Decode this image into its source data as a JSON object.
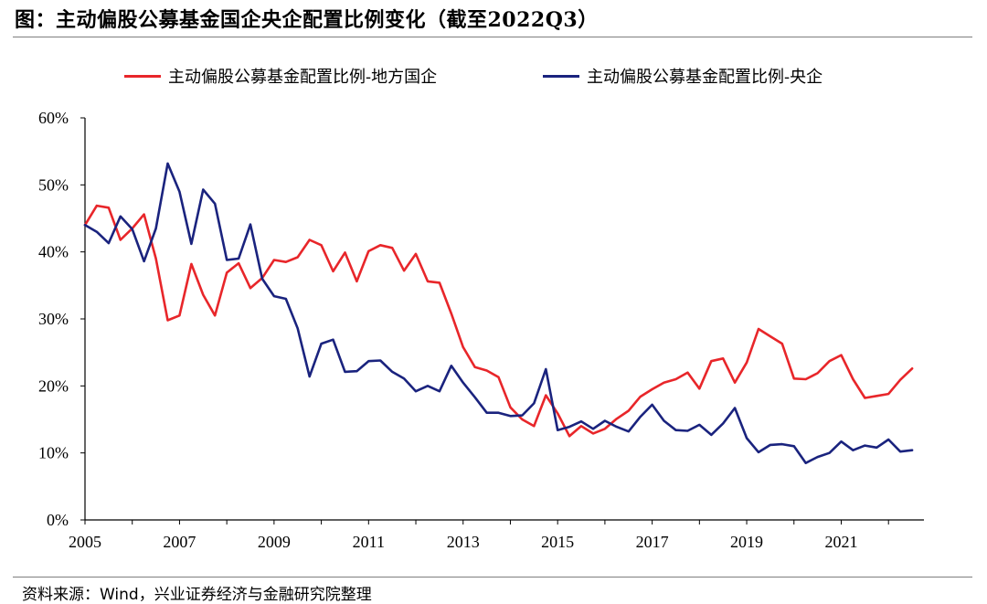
{
  "title": "图：主动偏股公募基金国企央企配置比例变化（截至2022Q3）",
  "source": "资料来源：Wind，兴业证券经济与金融研究院整理",
  "chart_data": {
    "type": "line",
    "title": "图：主动偏股公募基金国企央企配置比例变化（截至2022Q3）",
    "xlabel": "",
    "ylabel": "",
    "xlim": [
      2005,
      2022.75
    ],
    "ylim": [
      0,
      60
    ],
    "x_ticks": [
      "2005",
      "2007",
      "2009",
      "2011",
      "2013",
      "2015",
      "2017",
      "2019",
      "2021"
    ],
    "y_ticks": [
      "0%",
      "10%",
      "20%",
      "30%",
      "40%",
      "50%",
      "60%"
    ],
    "grid": false,
    "legend_position": "top",
    "x_start": "2005Q1",
    "x_step": "quarter",
    "series": [
      {
        "name": "主动偏股公募基金配置比例-地方国企",
        "color": "#e8262a",
        "values": [
          44.0,
          46.9,
          46.6,
          41.8,
          43.5,
          45.6,
          39.0,
          29.8,
          30.5,
          38.2,
          33.6,
          30.5,
          36.9,
          38.3,
          34.6,
          36.1,
          38.8,
          38.5,
          39.2,
          41.8,
          41.0,
          37.1,
          39.9,
          35.6,
          40.1,
          41.0,
          40.6,
          37.2,
          39.7,
          35.6,
          35.4,
          30.8,
          25.8,
          22.8,
          22.3,
          21.3,
          16.8,
          15.0,
          14.0,
          18.6,
          15.9,
          12.5,
          14.0,
          12.9,
          13.6,
          15.1,
          16.3,
          18.4,
          19.5,
          20.5,
          21.0,
          22.0,
          19.6,
          23.7,
          24.1,
          20.5,
          23.5,
          28.5,
          27.4,
          26.3,
          21.1,
          21.0,
          21.9,
          23.7,
          24.6,
          21.0,
          18.2,
          18.5,
          18.8,
          20.9,
          22.6
        ]
      },
      {
        "name": "主动偏股公募基金配置比例-央企",
        "color": "#1a237e",
        "values": [
          44.0,
          43.0,
          41.3,
          45.3,
          43.4,
          38.6,
          43.5,
          53.2,
          49.0,
          41.2,
          49.3,
          47.2,
          38.8,
          39.0,
          44.1,
          36.0,
          33.4,
          33.0,
          28.6,
          21.4,
          26.3,
          26.9,
          22.1,
          22.2,
          23.7,
          23.8,
          22.1,
          21.1,
          19.2,
          20.0,
          19.2,
          23.0,
          20.5,
          18.3,
          16.0,
          16.0,
          15.5,
          15.6,
          17.4,
          22.5,
          13.4,
          13.9,
          14.7,
          13.6,
          14.8,
          13.9,
          13.2,
          15.4,
          17.2,
          14.8,
          13.4,
          13.3,
          14.2,
          12.7,
          14.4,
          16.7,
          12.2,
          10.1,
          11.2,
          11.3,
          11.0,
          8.5,
          9.4,
          10.0,
          11.7,
          10.4,
          11.1,
          10.8,
          12.0,
          10.2,
          10.4
        ]
      }
    ]
  }
}
